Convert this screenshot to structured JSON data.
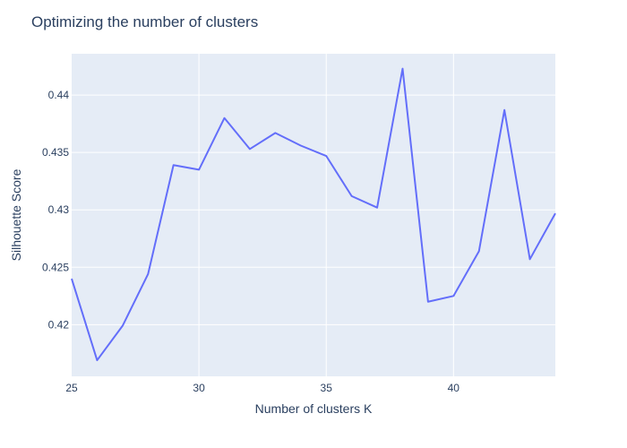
{
  "chart_data": {
    "type": "line",
    "title": "Optimizing the number of clusters",
    "xlabel": "Number of clusters K",
    "ylabel": "Silhouette Score",
    "xlim": [
      25,
      44
    ],
    "ylim": [
      0.4155,
      0.4436
    ],
    "x_ticks": [
      {
        "value": 25,
        "label": "25"
      },
      {
        "value": 30,
        "label": "30"
      },
      {
        "value": 35,
        "label": "35"
      },
      {
        "value": 40,
        "label": "40"
      }
    ],
    "y_ticks": [
      {
        "value": 0.42,
        "label": "0.42"
      },
      {
        "value": 0.425,
        "label": "0.425"
      },
      {
        "value": 0.43,
        "label": "0.43"
      },
      {
        "value": 0.435,
        "label": "0.435"
      },
      {
        "value": 0.44,
        "label": "0.44"
      }
    ],
    "grid": true,
    "plot_bgcolor": "#e5ecf6",
    "series": [
      {
        "color": "#636efa",
        "x": [
          25,
          26,
          27,
          28,
          29,
          30,
          31,
          32,
          33,
          34,
          35,
          36,
          37,
          38,
          39,
          40,
          41,
          42,
          43,
          44
        ],
        "y": [
          0.424,
          0.4169,
          0.4199,
          0.4244,
          0.4339,
          0.4335,
          0.438,
          0.4353,
          0.4367,
          0.4356,
          0.4347,
          0.4312,
          0.4302,
          0.4423,
          0.422,
          0.4225,
          0.4264,
          0.4387,
          0.4257,
          0.4297
        ]
      }
    ]
  }
}
